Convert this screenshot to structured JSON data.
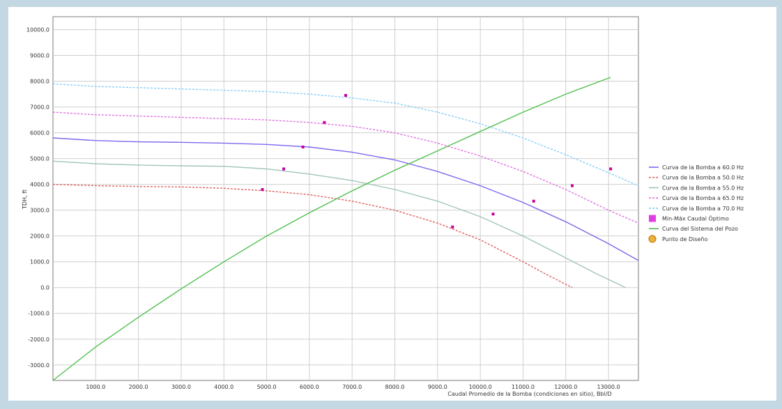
{
  "chart_data": {
    "type": "line",
    "title": "",
    "xlabel": "Caudal Promedio de la Bomba (condiciones en sitio), Bbl/D",
    "ylabel": "TDH, ft",
    "xlim": [
      0,
      13700
    ],
    "ylim": [
      -3600,
      10500
    ],
    "grid": true,
    "legend_position": "right",
    "x_ticks": [
      "1000.0",
      "2000.0",
      "3000.0",
      "4000.0",
      "5000.0",
      "6000.0",
      "7000.0",
      "8000.0",
      "9000.0",
      "10000.0",
      "11000.0",
      "12000.0",
      "13000.0"
    ],
    "x_tick_values": [
      1000,
      2000,
      3000,
      4000,
      5000,
      6000,
      7000,
      8000,
      9000,
      10000,
      11000,
      12000,
      13000
    ],
    "y_ticks": [
      "10000.0",
      "9000.0",
      "8000.0",
      "7000.0",
      "6000.0",
      "5000.0",
      "4000.0",
      "3000.0",
      "2000.0",
      "1000.0",
      "0.0",
      "-1000.0",
      "-2000.0",
      "-3000.0"
    ],
    "y_tick_values": [
      10000,
      9000,
      8000,
      7000,
      6000,
      5000,
      4000,
      3000,
      2000,
      1000,
      0,
      -1000,
      -2000,
      -3000
    ],
    "series": [
      {
        "name": "Curva de la Bomba a 60.0 Hz",
        "color": "#7b68ee",
        "dash": "solid",
        "x": [
          0,
          1000,
          2000,
          3000,
          4000,
          5000,
          6000,
          7000,
          8000,
          9000,
          10000,
          11000,
          12000,
          13000,
          13700
        ],
        "y": [
          5800,
          5700,
          5650,
          5630,
          5600,
          5550,
          5450,
          5250,
          4950,
          4500,
          3950,
          3300,
          2550,
          1700,
          1050
        ]
      },
      {
        "name": "Curva de la Bomba a 50.0 Hz",
        "color": "#e06060",
        "dash": "dashed",
        "x": [
          0,
          1000,
          2000,
          3000,
          4000,
          5000,
          6000,
          7000,
          8000,
          9000,
          10000,
          11000,
          11500,
          12150
        ],
        "y": [
          4000,
          3950,
          3920,
          3900,
          3850,
          3750,
          3600,
          3350,
          3000,
          2500,
          1850,
          1000,
          550,
          0
        ]
      },
      {
        "name": "Curva de la Bomba a 55.0 Hz",
        "color": "#9fc5b8",
        "dash": "solid",
        "x": [
          0,
          1000,
          2000,
          3000,
          4000,
          5000,
          6000,
          7000,
          8000,
          9000,
          10000,
          11000,
          12000,
          12700,
          13400
        ],
        "y": [
          4900,
          4800,
          4750,
          4720,
          4700,
          4600,
          4400,
          4150,
          3800,
          3350,
          2750,
          2000,
          1150,
          550,
          0
        ]
      },
      {
        "name": "Curva de la Bomba a 65.0 Hz",
        "color": "#e070e0",
        "dash": "dashed",
        "x": [
          0,
          1000,
          2000,
          3000,
          4000,
          5000,
          6000,
          7000,
          8000,
          9000,
          10000,
          11000,
          12000,
          13000,
          13700
        ],
        "y": [
          6800,
          6700,
          6650,
          6600,
          6550,
          6500,
          6400,
          6250,
          6000,
          5600,
          5100,
          4500,
          3800,
          3000,
          2500
        ]
      },
      {
        "name": "Curva de la Bomba a 70.0 Hz",
        "color": "#87cefa",
        "dash": "dashed",
        "x": [
          0,
          1000,
          2000,
          3000,
          4000,
          5000,
          6000,
          7000,
          8000,
          9000,
          10000,
          11000,
          12000,
          13000,
          13700
        ],
        "y": [
          7900,
          7800,
          7750,
          7700,
          7650,
          7600,
          7500,
          7350,
          7150,
          6800,
          6350,
          5800,
          5150,
          4450,
          3950
        ]
      },
      {
        "name": "Curva del Sistema del Pozo",
        "color": "#50c050",
        "dash": "solid",
        "x": [
          0,
          1000,
          2000,
          3000,
          4000,
          5000,
          6000,
          7000,
          8000,
          9000,
          10000,
          11000,
          12000,
          13050
        ],
        "y": [
          -3600,
          -2300,
          -1150,
          -50,
          1000,
          2000,
          2900,
          3750,
          4550,
          5300,
          6050,
          6800,
          7500,
          8150
        ]
      }
    ],
    "markers": {
      "name": "Min-Máx Caudal Óptimo",
      "color": "#c000a0",
      "points": [
        {
          "x": 4900,
          "y": 3800
        },
        {
          "x": 9350,
          "y": 2350
        },
        {
          "x": 5400,
          "y": 4600
        },
        {
          "x": 10300,
          "y": 2850
        },
        {
          "x": 5850,
          "y": 5450
        },
        {
          "x": 11250,
          "y": 3350
        },
        {
          "x": 6350,
          "y": 6400
        },
        {
          "x": 12150,
          "y": 3950
        },
        {
          "x": 6850,
          "y": 7450
        },
        {
          "x": 13050,
          "y": 4600
        }
      ]
    },
    "design_point": {
      "name": "Punto de Diseño",
      "color": "#f0b040"
    },
    "legend": [
      {
        "label": "Curva de la Bomba a 60.0 Hz",
        "type": "line",
        "color": "#7b68ee",
        "dash": "solid"
      },
      {
        "label": "Curva de la Bomba a 50.0 Hz",
        "type": "line",
        "color": "#e06060",
        "dash": "dashed"
      },
      {
        "label": "Curva de la Bomba a 55.0 Hz",
        "type": "line",
        "color": "#9fc5b8",
        "dash": "solid"
      },
      {
        "label": "Curva de la Bomba a 65.0 Hz",
        "type": "line",
        "color": "#e070e0",
        "dash": "dashed"
      },
      {
        "label": "Curva de la Bomba a 70.0 Hz",
        "type": "line",
        "color": "#87cefa",
        "dash": "dashed"
      },
      {
        "label": "Min-Máx Caudal Óptimo",
        "type": "square",
        "color": "#e040e0"
      },
      {
        "label": "Curva del Sistema del Pozo",
        "type": "line",
        "color": "#50c050",
        "dash": "solid"
      },
      {
        "label": "Punto de Diseño",
        "type": "circle",
        "color": "#f0b040"
      }
    ]
  }
}
